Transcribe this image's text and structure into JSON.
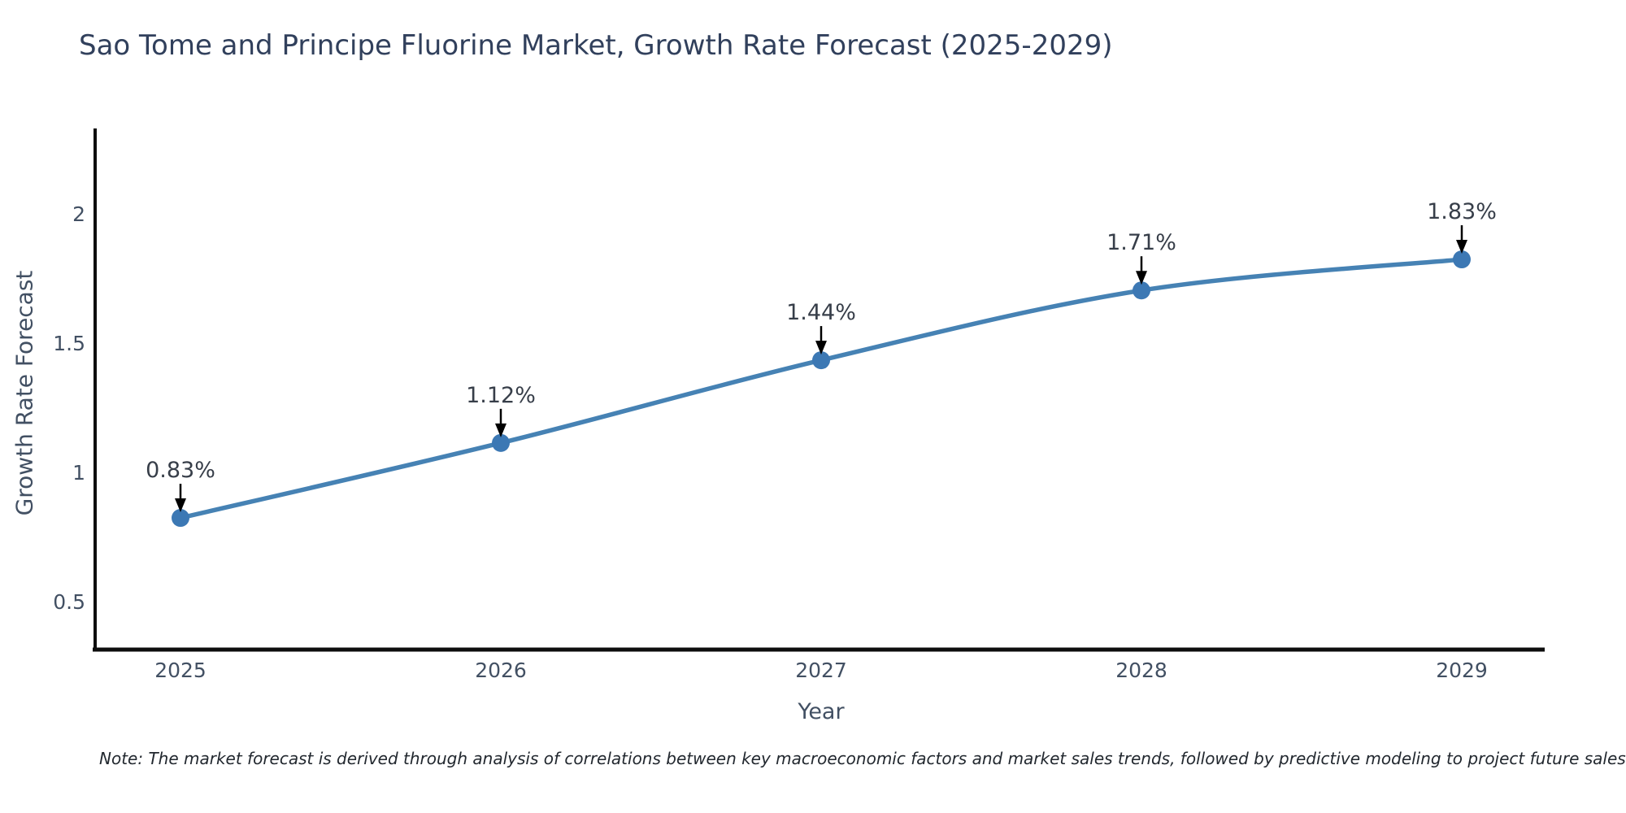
{
  "title": "Sao Tome and Principe Fluorine Market, Growth Rate Forecast (2025-2029)",
  "note": "Note: The market forecast is derived through analysis of correlations between key macroeconomic factors and market sales trends, followed by predictive modeling to project future sales",
  "chart_data": {
    "type": "line",
    "title": "Sao Tome and Principe Fluorine Market, Growth Rate Forecast (2025-2029)",
    "xlabel": "Year",
    "ylabel": "Growth Rate Forecast",
    "categories": [
      "2025",
      "2026",
      "2027",
      "2028",
      "2029"
    ],
    "series": [
      {
        "name": "Growth Rate Forecast",
        "values": [
          0.83,
          1.12,
          1.44,
          1.71,
          1.83
        ],
        "point_labels": [
          "0.83%",
          "1.12%",
          "1.44%",
          "1.71%",
          "1.83%"
        ]
      }
    ],
    "yticks": [
      0.5,
      1,
      1.5,
      2
    ],
    "ylim": [
      0.32,
      2.33
    ],
    "grid": false,
    "legend_position": "none",
    "line_shape": "spline",
    "annotations": "down-arrow from each point label to marker",
    "colors": {
      "line": "#4682b4",
      "marker": "#3c78b4",
      "axis": "#0d0d0d",
      "arrow": "#000000",
      "title_text": "#31405c",
      "tick_text": "#425063",
      "point_label_text": "#373e49",
      "note_text": "#22282f",
      "background": "#ffffff"
    }
  }
}
